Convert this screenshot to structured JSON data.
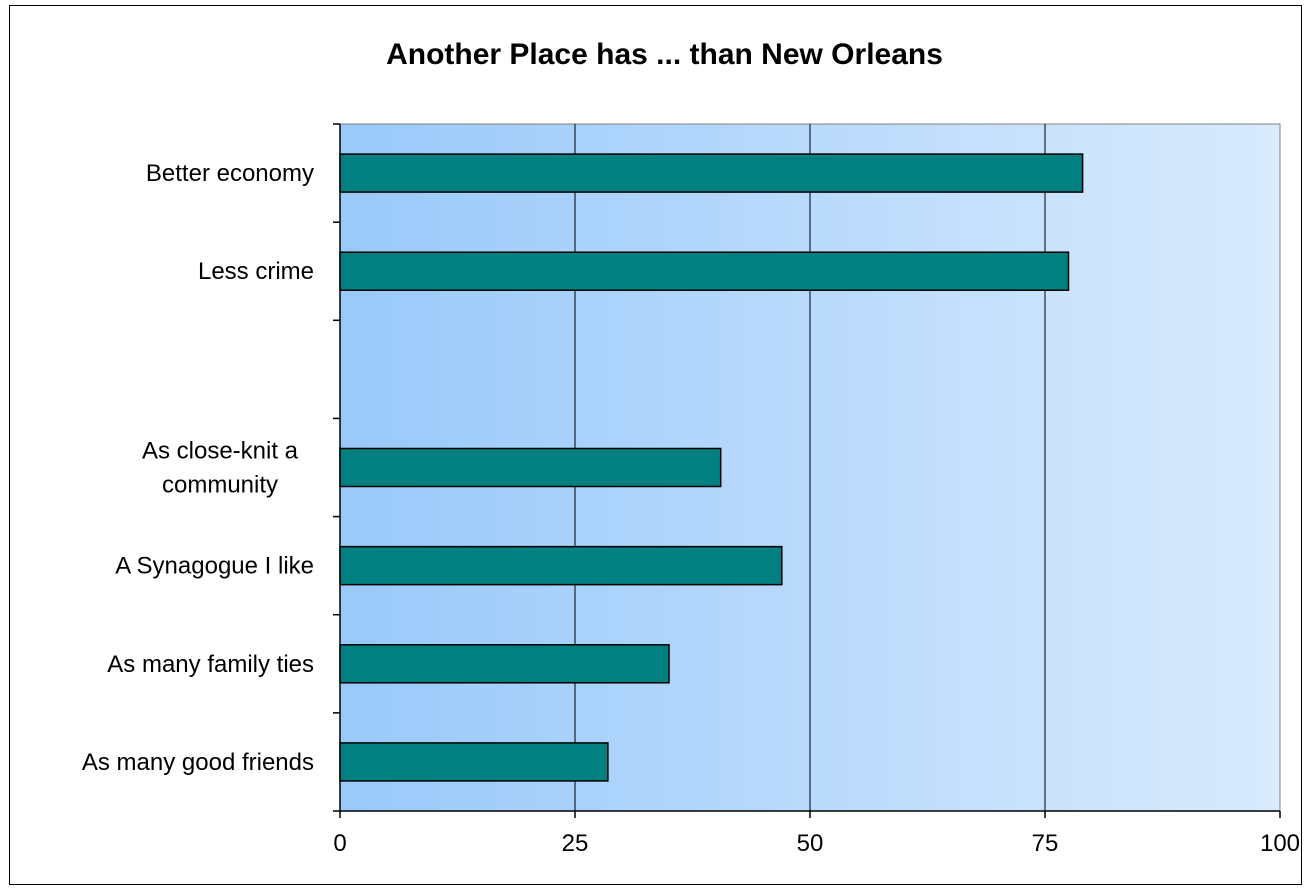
{
  "chart_data": {
    "type": "bar",
    "orientation": "horizontal",
    "title": "Another Place has ... than New Orleans",
    "categories": [
      "Better economy",
      "Less crime",
      "",
      "As close-knit a community",
      "A Synagogue I like",
      "As many family ties",
      "As many good friends"
    ],
    "category_lines": [
      [
        "Better economy"
      ],
      [
        "Less crime"
      ],
      [],
      [
        "As close-knit a",
        "community"
      ],
      [
        "A Synagogue I like"
      ],
      [
        "As many family ties"
      ],
      [
        "As many good friends"
      ]
    ],
    "values": [
      79,
      77.5,
      null,
      40.5,
      47,
      35,
      28.5
    ],
    "x_ticks": [
      "0",
      "25",
      "50",
      "75",
      "100"
    ],
    "xlim": [
      0,
      100
    ],
    "xlabel": "",
    "ylabel": "",
    "grid": "vertical",
    "legend": "none",
    "colors": {
      "bar_fill": "#008080",
      "bar_stroke": "#000000",
      "plot_bg_left": "#99c9fa",
      "plot_bg_right": "#d9ebfd",
      "grid": "#000000"
    }
  }
}
